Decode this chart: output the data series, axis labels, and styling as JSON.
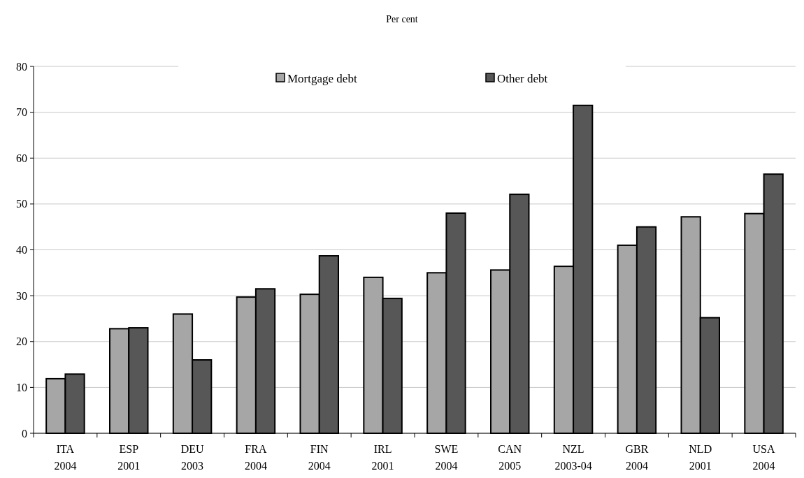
{
  "chart_data": {
    "type": "bar",
    "subtitle": "Per cent",
    "categories": [
      "ITA\n2004",
      "ESP\n2001",
      "DEU\n2003",
      "FRA\n2004",
      "FIN\n2004",
      "IRL\n2001",
      "SWE\n2004",
      "CAN\n2005",
      "NZL\n2003-04",
      "GBR\n2004",
      "NLD\n2001",
      "USA\n2004"
    ],
    "series": [
      {
        "name": "Mortgage debt",
        "color": "#a6a6a6",
        "values": [
          11.9,
          22.8,
          26,
          29.7,
          30.3,
          34,
          35,
          35.6,
          36.4,
          41,
          47.2,
          47.9
        ]
      },
      {
        "name": "Other debt",
        "color": "#575757",
        "values": [
          12.9,
          23,
          16,
          31.5,
          38.7,
          29.4,
          48,
          52.1,
          71.5,
          45,
          25.2,
          56.5
        ]
      }
    ],
    "ylim": [
      0,
      80
    ],
    "yticks": [
      0,
      10,
      20,
      30,
      40,
      50,
      60,
      70,
      80
    ],
    "grid": "y",
    "legend": "top"
  }
}
